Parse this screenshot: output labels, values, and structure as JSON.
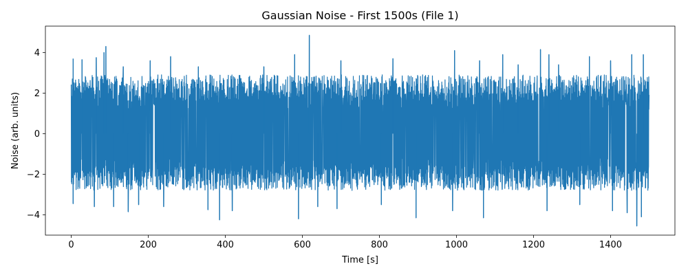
{
  "chart_data": {
    "type": "line",
    "title": "Gaussian Noise - First 1500s (File 1)",
    "xlabel": "Time [s]",
    "ylabel": "Noise (arb. units)",
    "xlim": [
      -67,
      1567
    ],
    "ylim": [
      -5,
      5.3
    ],
    "xticks": [
      0,
      200,
      400,
      600,
      800,
      1000,
      1200,
      1400
    ],
    "yticks": [
      -4,
      -2,
      0,
      2,
      4
    ],
    "ytick_labels": [
      "−4",
      "−2",
      "0",
      "2",
      "4"
    ],
    "grid": false,
    "legend": "none",
    "series": [
      {
        "color": "#1f77b4",
        "x_range": [
          0,
          1500
        ],
        "typical_band": [
          -2.8,
          2.9
        ],
        "peaks": [
          {
            "x": 5,
            "y": 3.7
          },
          {
            "x": 28,
            "y": 3.65
          },
          {
            "x": 65,
            "y": 3.75
          },
          {
            "x": 85,
            "y": 4.0
          },
          {
            "x": 90,
            "y": 4.3
          },
          {
            "x": 135,
            "y": 3.3
          },
          {
            "x": 205,
            "y": 3.6
          },
          {
            "x": 258,
            "y": 3.8
          },
          {
            "x": 330,
            "y": 3.3
          },
          {
            "x": 500,
            "y": 3.3
          },
          {
            "x": 580,
            "y": 3.9
          },
          {
            "x": 618,
            "y": 4.85
          },
          {
            "x": 700,
            "y": 3.6
          },
          {
            "x": 835,
            "y": 3.7
          },
          {
            "x": 995,
            "y": 4.1
          },
          {
            "x": 1060,
            "y": 3.6
          },
          {
            "x": 1120,
            "y": 3.9
          },
          {
            "x": 1160,
            "y": 3.4
          },
          {
            "x": 1218,
            "y": 4.15
          },
          {
            "x": 1240,
            "y": 3.9
          },
          {
            "x": 1265,
            "y": 3.4
          },
          {
            "x": 1345,
            "y": 3.8
          },
          {
            "x": 1400,
            "y": 3.6
          },
          {
            "x": 1455,
            "y": 3.9
          },
          {
            "x": 1485,
            "y": 3.9
          }
        ],
        "troughs": [
          {
            "x": 5,
            "y": -3.45
          },
          {
            "x": 60,
            "y": -3.6
          },
          {
            "x": 110,
            "y": -3.6
          },
          {
            "x": 148,
            "y": -3.85
          },
          {
            "x": 175,
            "y": -3.5
          },
          {
            "x": 240,
            "y": -3.6
          },
          {
            "x": 355,
            "y": -3.75
          },
          {
            "x": 385,
            "y": -4.25
          },
          {
            "x": 418,
            "y": -3.8
          },
          {
            "x": 590,
            "y": -4.2
          },
          {
            "x": 640,
            "y": -3.6
          },
          {
            "x": 690,
            "y": -3.7
          },
          {
            "x": 805,
            "y": -3.5
          },
          {
            "x": 895,
            "y": -4.15
          },
          {
            "x": 990,
            "y": -3.8
          },
          {
            "x": 1070,
            "y": -4.15
          },
          {
            "x": 1235,
            "y": -3.8
          },
          {
            "x": 1320,
            "y": -3.5
          },
          {
            "x": 1405,
            "y": -3.8
          },
          {
            "x": 1443,
            "y": -3.9
          },
          {
            "x": 1468,
            "y": -4.55
          },
          {
            "x": 1480,
            "y": -4.1
          }
        ]
      }
    ]
  }
}
